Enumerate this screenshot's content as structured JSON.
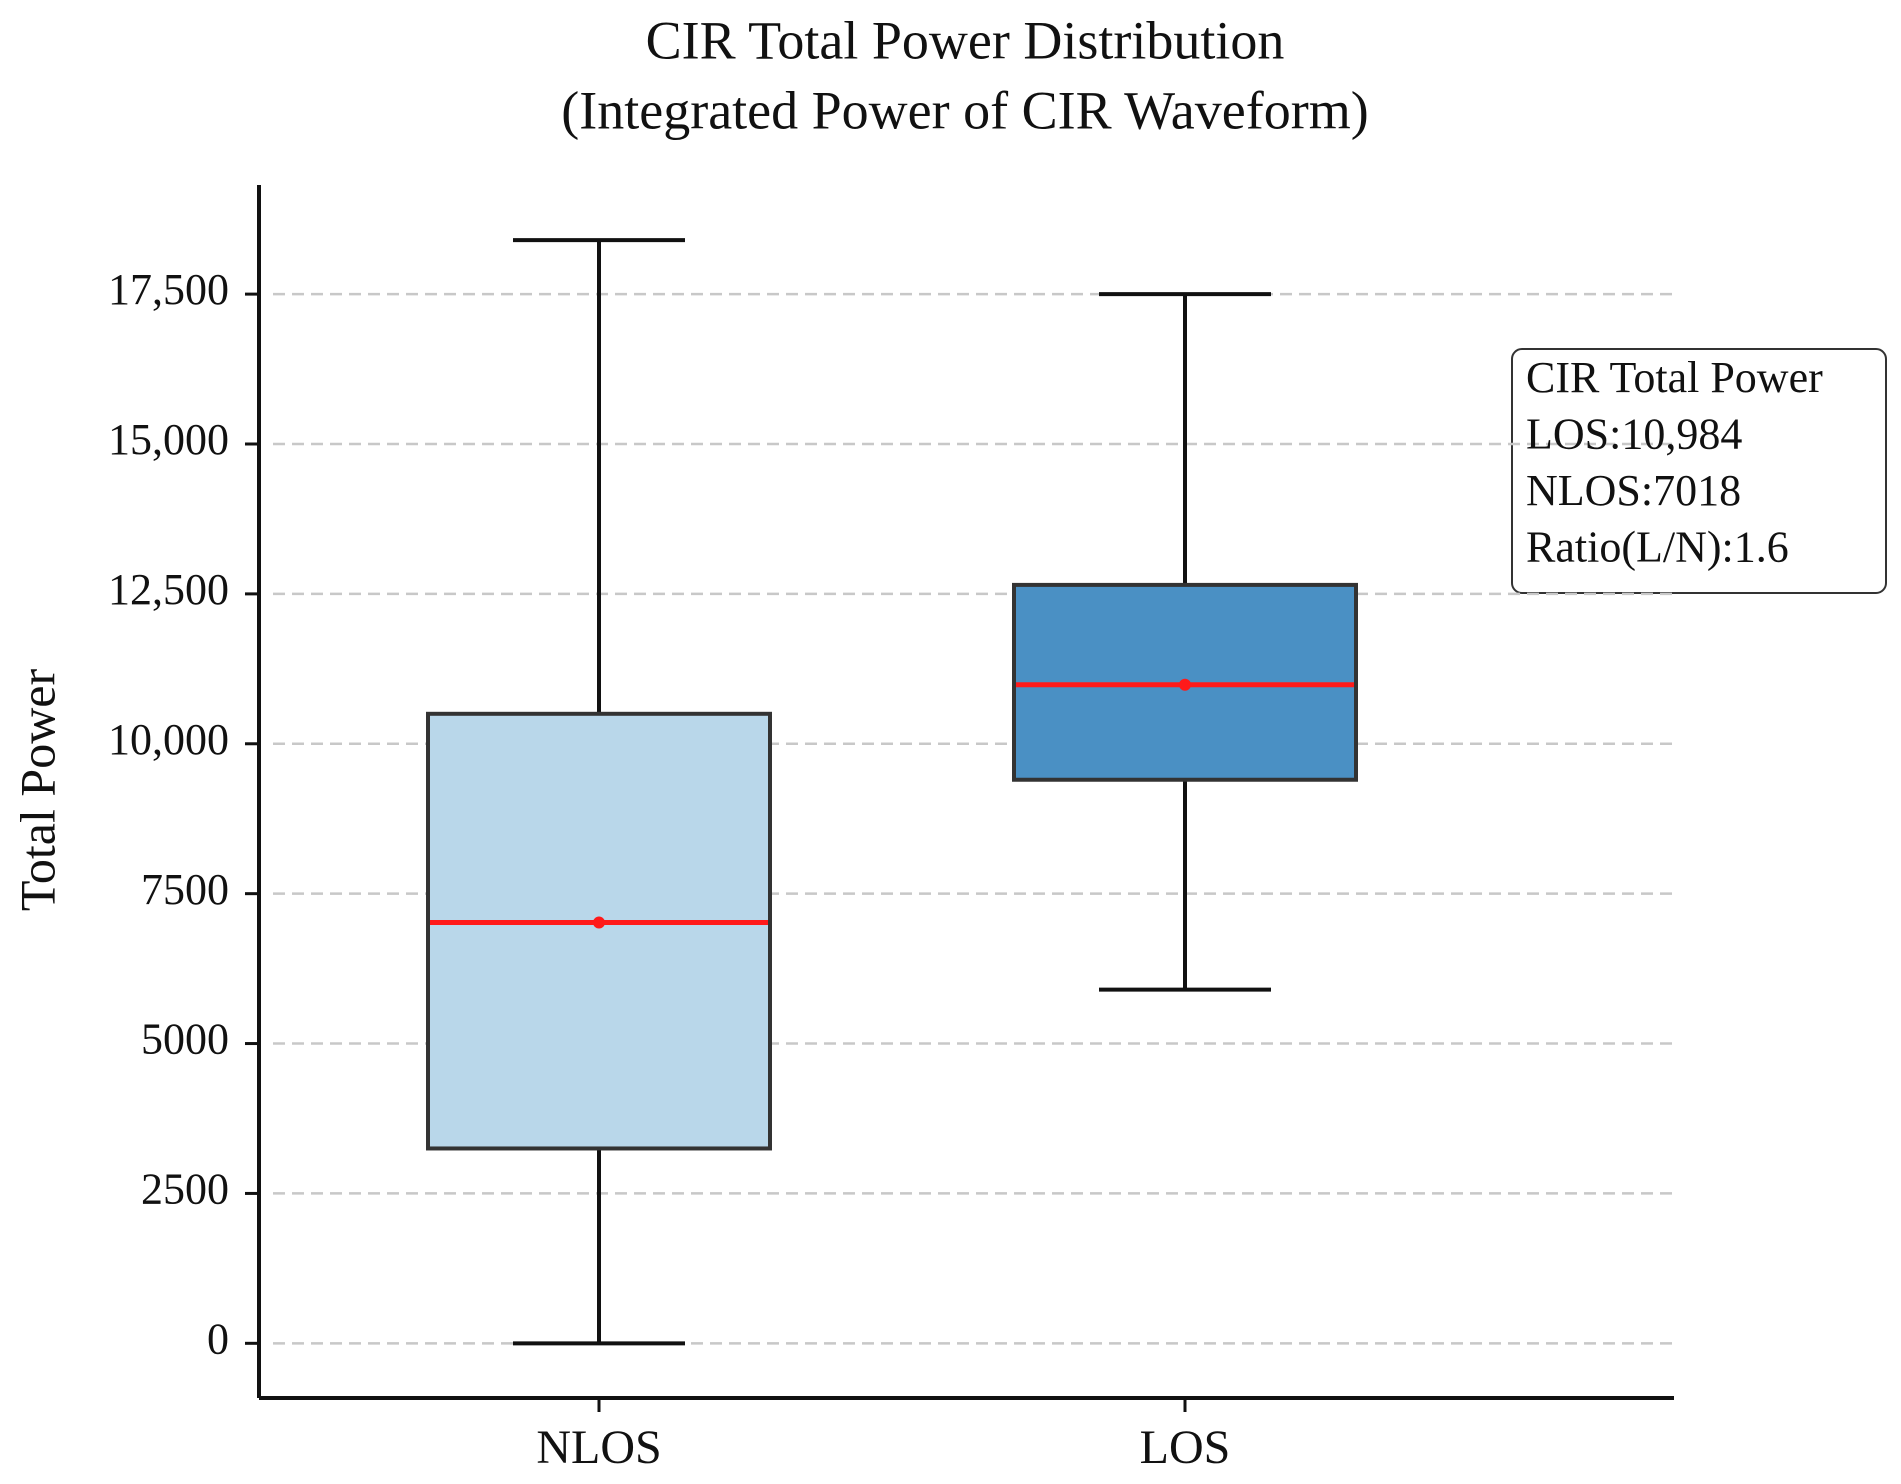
{
  "chart_data": {
    "type": "box",
    "title": [
      "CIR Total Power Distribution",
      "(Integrated Power of CIR Waveform)"
    ],
    "y_label": "Total Power",
    "categories": [
      "NLOS",
      "LOS"
    ],
    "whislo": [
      0,
      5900
    ],
    "q1": [
      3250,
      9400
    ],
    "median": [
      7018,
      10984
    ],
    "q3": [
      10500,
      12650
    ],
    "whishi": [
      18400,
      17500
    ],
    "colors": [
      "#b9d7ea",
      "#4a90c4"
    ],
    "median_color": "#ff1a1a",
    "ylim": [
      -912,
      19320
    ],
    "yticks": [
      0,
      2500,
      5000,
      7500,
      {
        "value": 10000,
        "label": "10,000"
      },
      {
        "value": 12500,
        "label": "12,500"
      },
      {
        "value": 15000,
        "label": "15,000"
      },
      {
        "value": 17500,
        "label": "17,500"
      }
    ],
    "grid": true,
    "annotation": [
      "CIR Total Power",
      "LOS:10,984",
      "NLOS:7018",
      "Ratio(L/N):1.6"
    ]
  }
}
